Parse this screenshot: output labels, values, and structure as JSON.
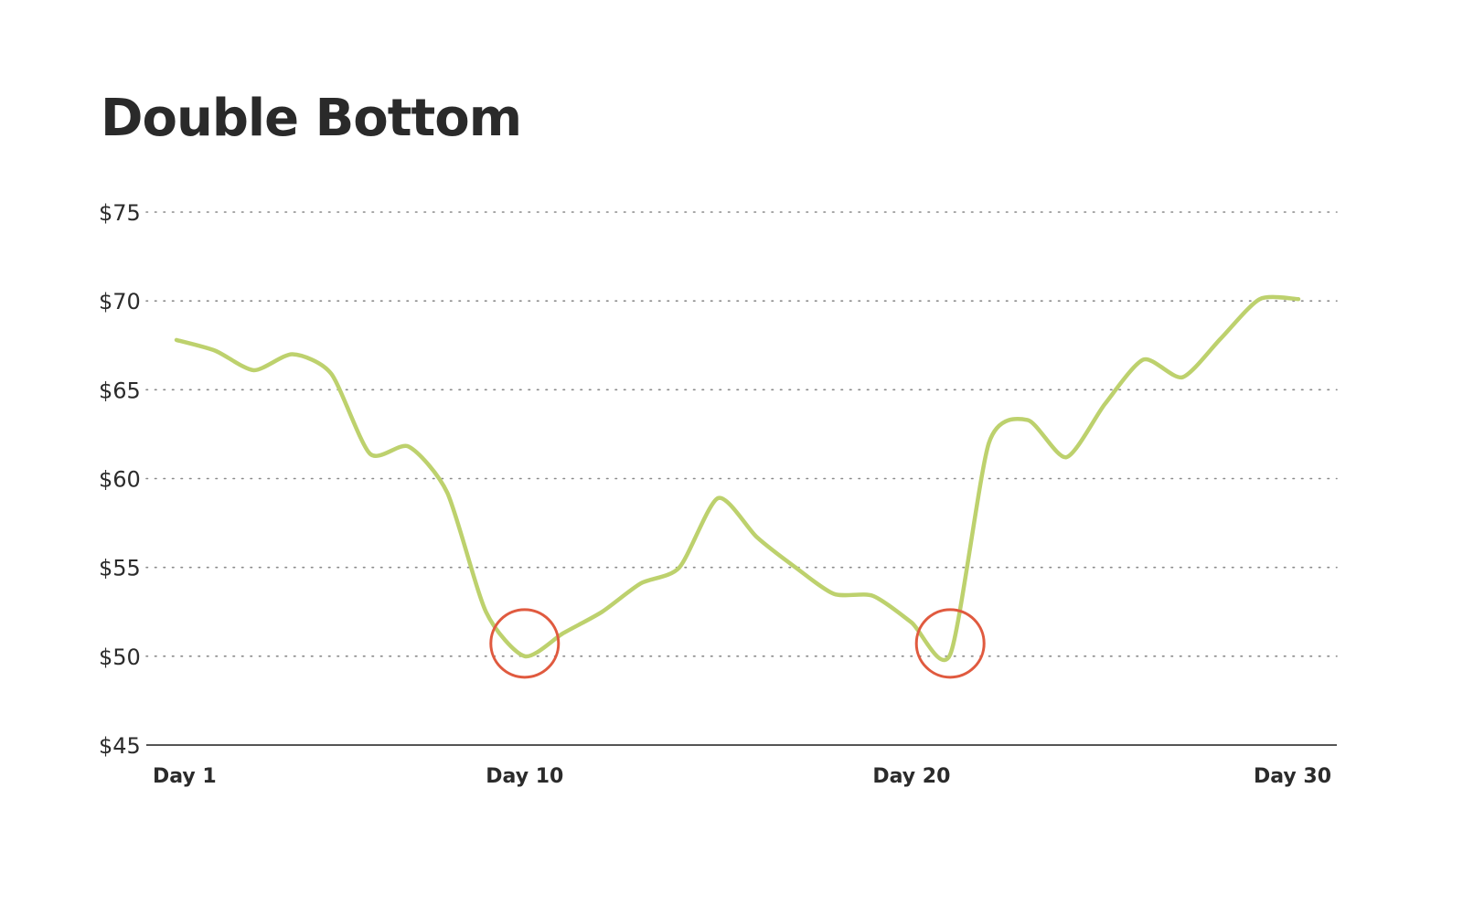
{
  "chart_data": {
    "type": "line",
    "title": "Double Bottom",
    "xlabel": "",
    "ylabel": "",
    "x_tick_labels": [
      "Day 1",
      "Day 10",
      "Day 20",
      "Day 30"
    ],
    "x_ticks": [
      1,
      10,
      20,
      30
    ],
    "y_tick_labels": [
      "$45",
      "$50",
      "$55",
      "$60",
      "$65",
      "$70",
      "$75"
    ],
    "y_ticks": [
      45,
      50,
      55,
      60,
      65,
      70,
      75
    ],
    "xlim": [
      1,
      30
    ],
    "ylim": [
      45,
      75
    ],
    "grid": "horizontal dotted",
    "series": [
      {
        "x": [
          1,
          2,
          3,
          4,
          5,
          6,
          7,
          8,
          9,
          10,
          11,
          12,
          13,
          14,
          15,
          16,
          17,
          18,
          19,
          20,
          21,
          22,
          23,
          24,
          25,
          26,
          27,
          28,
          29,
          30
        ],
        "values": [
          67.8,
          67.2,
          66.1,
          67,
          65.9,
          61.4,
          61.8,
          59.2,
          52.5,
          50,
          51.3,
          52.5,
          54.1,
          55,
          58.9,
          56.7,
          55,
          53.5,
          53.4,
          51.9,
          50.1,
          62,
          63.3,
          61.2,
          64.2,
          66.7,
          65.7,
          67.9,
          70.1,
          70.1
        ],
        "color": "#bdd16d"
      }
    ],
    "annotations": [
      {
        "type": "circle",
        "x": 10,
        "y": 50,
        "color": "#e05a3f"
      },
      {
        "type": "circle",
        "x": 21,
        "y": 50,
        "color": "#e05a3f"
      }
    ],
    "colors": {
      "line": "#bdd16d",
      "highlight": "#e05a3f",
      "grid": "#8a8a8a",
      "axis": "#555555",
      "text": "#2b2b2b"
    }
  }
}
